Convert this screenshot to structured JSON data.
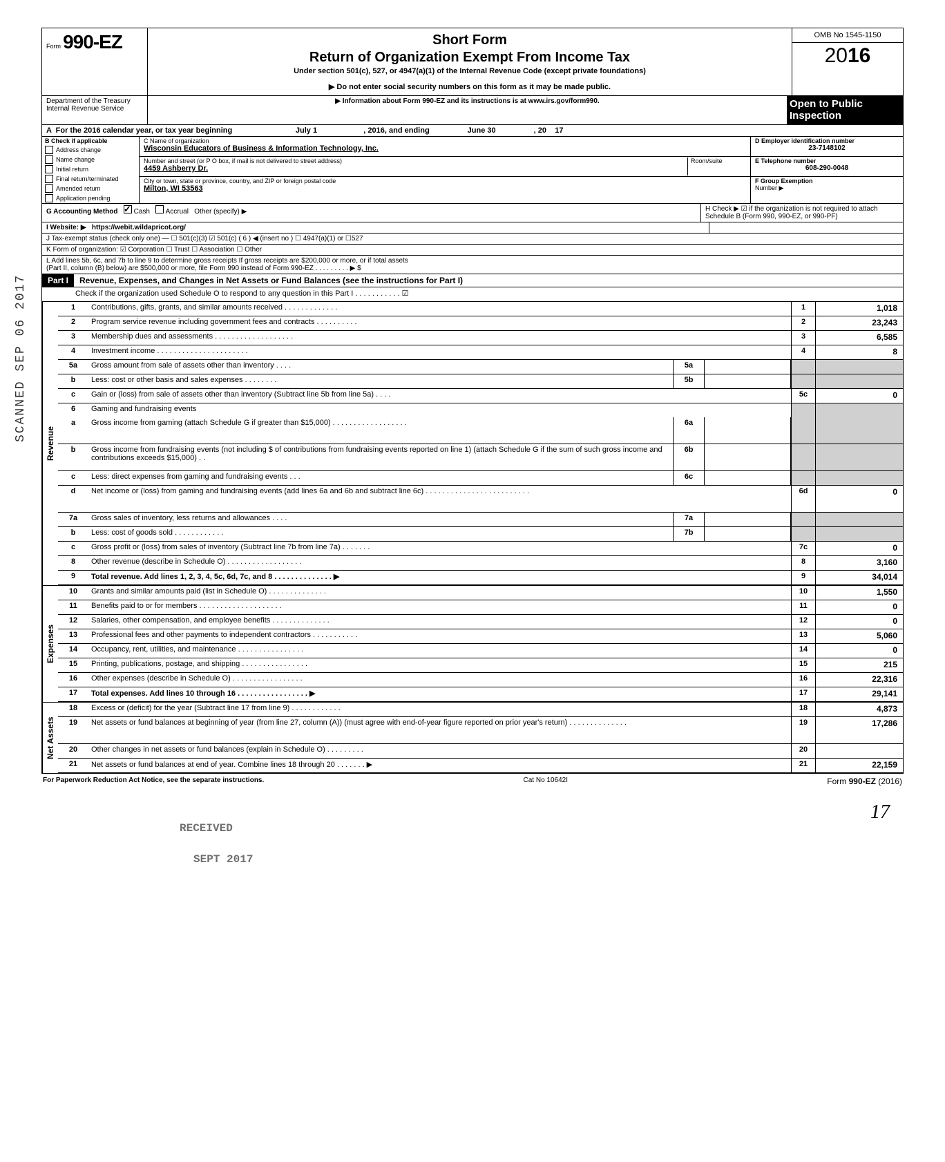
{
  "header": {
    "form_prefix": "Form",
    "form_number": "990-EZ",
    "short_form": "Short Form",
    "title": "Return of Organization Exempt From Income Tax",
    "under_section": "Under section 501(c), 527, or 4947(a)(1) of the Internal Revenue Code (except private foundations)",
    "ssn_notice": "▶ Do not enter social security numbers on this form as it may be made public.",
    "info_notice": "▶ Information about Form 990-EZ and its instructions is at www.irs.gov/form990.",
    "omb": "OMB No 1545-1150",
    "year_prefix": "20",
    "year_bold": "16",
    "open_public_1": "Open to Public",
    "open_public_2": "Inspection",
    "dept": "Department of the Treasury\nInternal Revenue Service"
  },
  "row_a": "A  For the 2016 calendar year, or tax year beginning                              July 1                      , 2016, and ending                  June 30                  , 20    17",
  "section_b": {
    "label": "B  Check if applicable",
    "items": [
      "Address change",
      "Name change",
      "Initial return",
      "Final return/terminated",
      "Amended return",
      "Application pending"
    ]
  },
  "section_c": {
    "name_label": "C  Name of organization",
    "name_value": "Wisconsin Educators of Business & Information Technology, Inc.",
    "addr_label": "Number and street (or P O  box, if mail is not delivered to street address)",
    "addr_value": "4459 Ashberry Dr.",
    "room_label": "Room/suite",
    "city_label": "City or town, state or province, country, and ZIP or foreign postal code",
    "city_value": "Milton, WI 53563"
  },
  "section_d": {
    "ein_label": "D Employer identification number",
    "ein_value": "23-7148102",
    "tel_label": "E Telephone number",
    "tel_value": "608-290-0048",
    "group_label": "F Group Exemption",
    "group_label2": "Number ▶"
  },
  "row_g": {
    "label": "G  Accounting Method",
    "cash": "Cash",
    "accrual": "Accrual",
    "other": "Other (specify) ▶"
  },
  "row_h": "H  Check ▶ ☑ if the organization is not required to attach Schedule B (Form 990, 990-EZ, or 990-PF)",
  "row_i": {
    "label": "I   Website: ▶",
    "value": "https://webit.wildapricot.org/"
  },
  "row_j": "J  Tax-exempt status (check only one) — ☐ 501(c)(3)   ☑ 501(c) (  6  ) ◀ (insert no )  ☐ 4947(a)(1) or    ☐527",
  "row_k": "K  Form of organization:   ☑ Corporation       ☐ Trust            ☐ Association       ☐ Other",
  "row_l1": "L  Add lines 5b, 6c, and 7b to line 9 to determine gross receipts  If gross receipts are $200,000 or more, or if total assets",
  "row_l2": "(Part II, column (B) below) are $500,000 or more, file Form 990 instead of Form 990-EZ .   .   .   .   .   .   .   .   .   ▶   $",
  "part1": {
    "label": "Part I",
    "title": "Revenue, Expenses, and Changes in Net Assets or Fund Balances (see the instructions for Part I)",
    "check_line": "Check if the organization used Schedule O to respond to any question in this Part I  .   .   .   .   .   .   .   .   .   .   .   ☑"
  },
  "sections": {
    "revenue": "Revenue",
    "expenses": "Expenses",
    "netassets": "Net Assets"
  },
  "lines": [
    {
      "n": "1",
      "d": "Contributions, gifts, grants, and similar amounts received .   .   .   .   .   .   .   .   .   .   .   .   .",
      "fn": "1",
      "fv": "1,018"
    },
    {
      "n": "2",
      "d": "Program service revenue including government fees and contracts   .   .   .   .   .   .   .   .   .   .",
      "fn": "2",
      "fv": "23,243"
    },
    {
      "n": "3",
      "d": "Membership dues and assessments .   .   .   .   .   .   .   .   .   .   .   .   .   .   .   .   .   .   .",
      "fn": "3",
      "fv": "6,585"
    },
    {
      "n": "4",
      "d": "Investment income     .   .   .   .   .   .   .   .   .   .   .   .   .   .   .   .   .   .   .   .   .   .",
      "fn": "4",
      "fv": "8"
    },
    {
      "n": "5a",
      "d": "Gross amount from sale of assets other than inventory   .   .   .   .",
      "sb": "5a",
      "sv": "",
      "shaded": true
    },
    {
      "n": "b",
      "d": "Less: cost or other basis and sales expenses .   .   .   .   .   .   .   .",
      "sb": "5b",
      "sv": "",
      "shaded": true
    },
    {
      "n": "c",
      "d": "Gain or (loss) from sale of assets other than inventory (Subtract line 5b from line 5a) .   .   .   .",
      "fn": "5c",
      "fv": "0"
    },
    {
      "n": "6",
      "d": "Gaming and fundraising events",
      "shaded": true,
      "noborder": true
    },
    {
      "n": "a",
      "d": "Gross income from gaming (attach Schedule G if greater than $15,000) .   .   .   .   .   .   .   .   .   .   .   .   .   .   .   .   .   .",
      "sb": "6a",
      "sv": "",
      "shaded": true,
      "tall": true
    },
    {
      "n": "b",
      "d": "Gross income from fundraising events (not including  $                           of contributions from fundraising events reported on line 1) (attach Schedule G if the sum of such gross income and contributions exceeds $15,000) .   .",
      "sb": "6b",
      "sv": "",
      "shaded": true,
      "tall": true
    },
    {
      "n": "c",
      "d": "Less: direct expenses from gaming and fundraising events   .   .   .",
      "sb": "6c",
      "sv": "",
      "shaded": true
    },
    {
      "n": "d",
      "d": "Net income or (loss) from gaming and fundraising events (add lines 6a and 6b and subtract line 6c)     .   .   .   .   .   .   .   .   .   .   .   .   .   .   .   .   .   .   .   .   .   .   .   .   .",
      "fn": "6d",
      "fv": "0",
      "tall": true
    },
    {
      "n": "7a",
      "d": "Gross sales of inventory, less returns and allowances   .   .   .   .",
      "sb": "7a",
      "sv": "",
      "shaded": true
    },
    {
      "n": "b",
      "d": "Less: cost of goods sold      .   .   .   .   .   .   .   .   .   .   .   .",
      "sb": "7b",
      "sv": "",
      "shaded": true
    },
    {
      "n": "c",
      "d": "Gross profit or (loss) from sales of inventory (Subtract line 7b from line 7a)  .   .   .   .   .   .   .",
      "fn": "7c",
      "fv": "0"
    },
    {
      "n": "8",
      "d": "Other revenue (describe in Schedule O) .   .   .   .   .   .   .   .   .   .   .   .   .   .   .   .   .   .",
      "fn": "8",
      "fv": "3,160"
    },
    {
      "n": "9",
      "d": "Total revenue. Add lines 1, 2, 3, 4, 5c, 6d, 7c, and 8   .   .   .   .   .   .   .   .   .   .   .   .   .   .   ▶",
      "fn": "9",
      "fv": "34,014",
      "bold": true
    }
  ],
  "expense_lines": [
    {
      "n": "10",
      "d": "Grants and similar amounts paid (list in Schedule O)   .   .   .   .   .   .   .   .   .   .   .   .   .   .",
      "fn": "10",
      "fv": "1,550"
    },
    {
      "n": "11",
      "d": "Benefits paid to or for members .   .   .   .   .   .   .   .   .   .   .   .   .   .   .   .   .   .   .   .",
      "fn": "11",
      "fv": "0"
    },
    {
      "n": "12",
      "d": "Salaries, other compensation, and employee benefits  .   .   .   .   .   .   .   .   .   .   .   .   .   .",
      "fn": "12",
      "fv": "0"
    },
    {
      "n": "13",
      "d": "Professional fees and other payments to independent contractors .   .   .   .   .   .   .   .   .   .   .",
      "fn": "13",
      "fv": "5,060"
    },
    {
      "n": "14",
      "d": "Occupancy, rent, utilities, and maintenance   .   .   .   .   .   .   .   .   .   .   .   .   .   .   .   .",
      "fn": "14",
      "fv": "0"
    },
    {
      "n": "15",
      "d": "Printing, publications, postage, and shipping .   .   .   .   .   .   .   .   .   .   .   .   .   .   .   .",
      "fn": "15",
      "fv": "215"
    },
    {
      "n": "16",
      "d": "Other expenses (describe in Schedule O)   .   .   .   .   .   .   .   .   .   .   .   .   .   .   .   .   .",
      "fn": "16",
      "fv": "22,316"
    },
    {
      "n": "17",
      "d": "Total expenses. Add lines 10 through 16  .   .   .   .   .   .   .   .   .   .   .   .   .   .   .   .   . ▶",
      "fn": "17",
      "fv": "29,141",
      "bold": true
    }
  ],
  "netasset_lines": [
    {
      "n": "18",
      "d": "Excess or (deficit) for the year (Subtract line 17 from line 9)   .   .   .   .   .   .   .   .   .   .   .   .",
      "fn": "18",
      "fv": "4,873"
    },
    {
      "n": "19",
      "d": "Net assets or fund balances at beginning of year (from line 27, column (A)) (must agree with end-of-year figure reported on prior year's return)   .   .   .   .   .   .   .   .   .   .   .   .   .   .",
      "fn": "19",
      "fv": "17,286",
      "tall": true
    },
    {
      "n": "20",
      "d": "Other changes in net assets or fund balances (explain in Schedule O)    .   .   .   .   .   .   .   .   .",
      "fn": "20",
      "fv": ""
    },
    {
      "n": "21",
      "d": "Net assets or fund balances at end of year. Combine lines 18 through 20    .   .   .   .   .   .   . ▶",
      "fn": "21",
      "fv": "22,159"
    }
  ],
  "footer": {
    "left": "For Paperwork Reduction Act Notice, see the separate instructions.",
    "center": "Cat  No  10642I",
    "right_prefix": "Form ",
    "right_form": "990-EZ",
    "right_year": " (2016)"
  },
  "stamps": {
    "scanned": "SCANNED SEP 06 2017",
    "received1": "RECEIVED",
    "received2": "SEPT 2017",
    "page": "17"
  }
}
